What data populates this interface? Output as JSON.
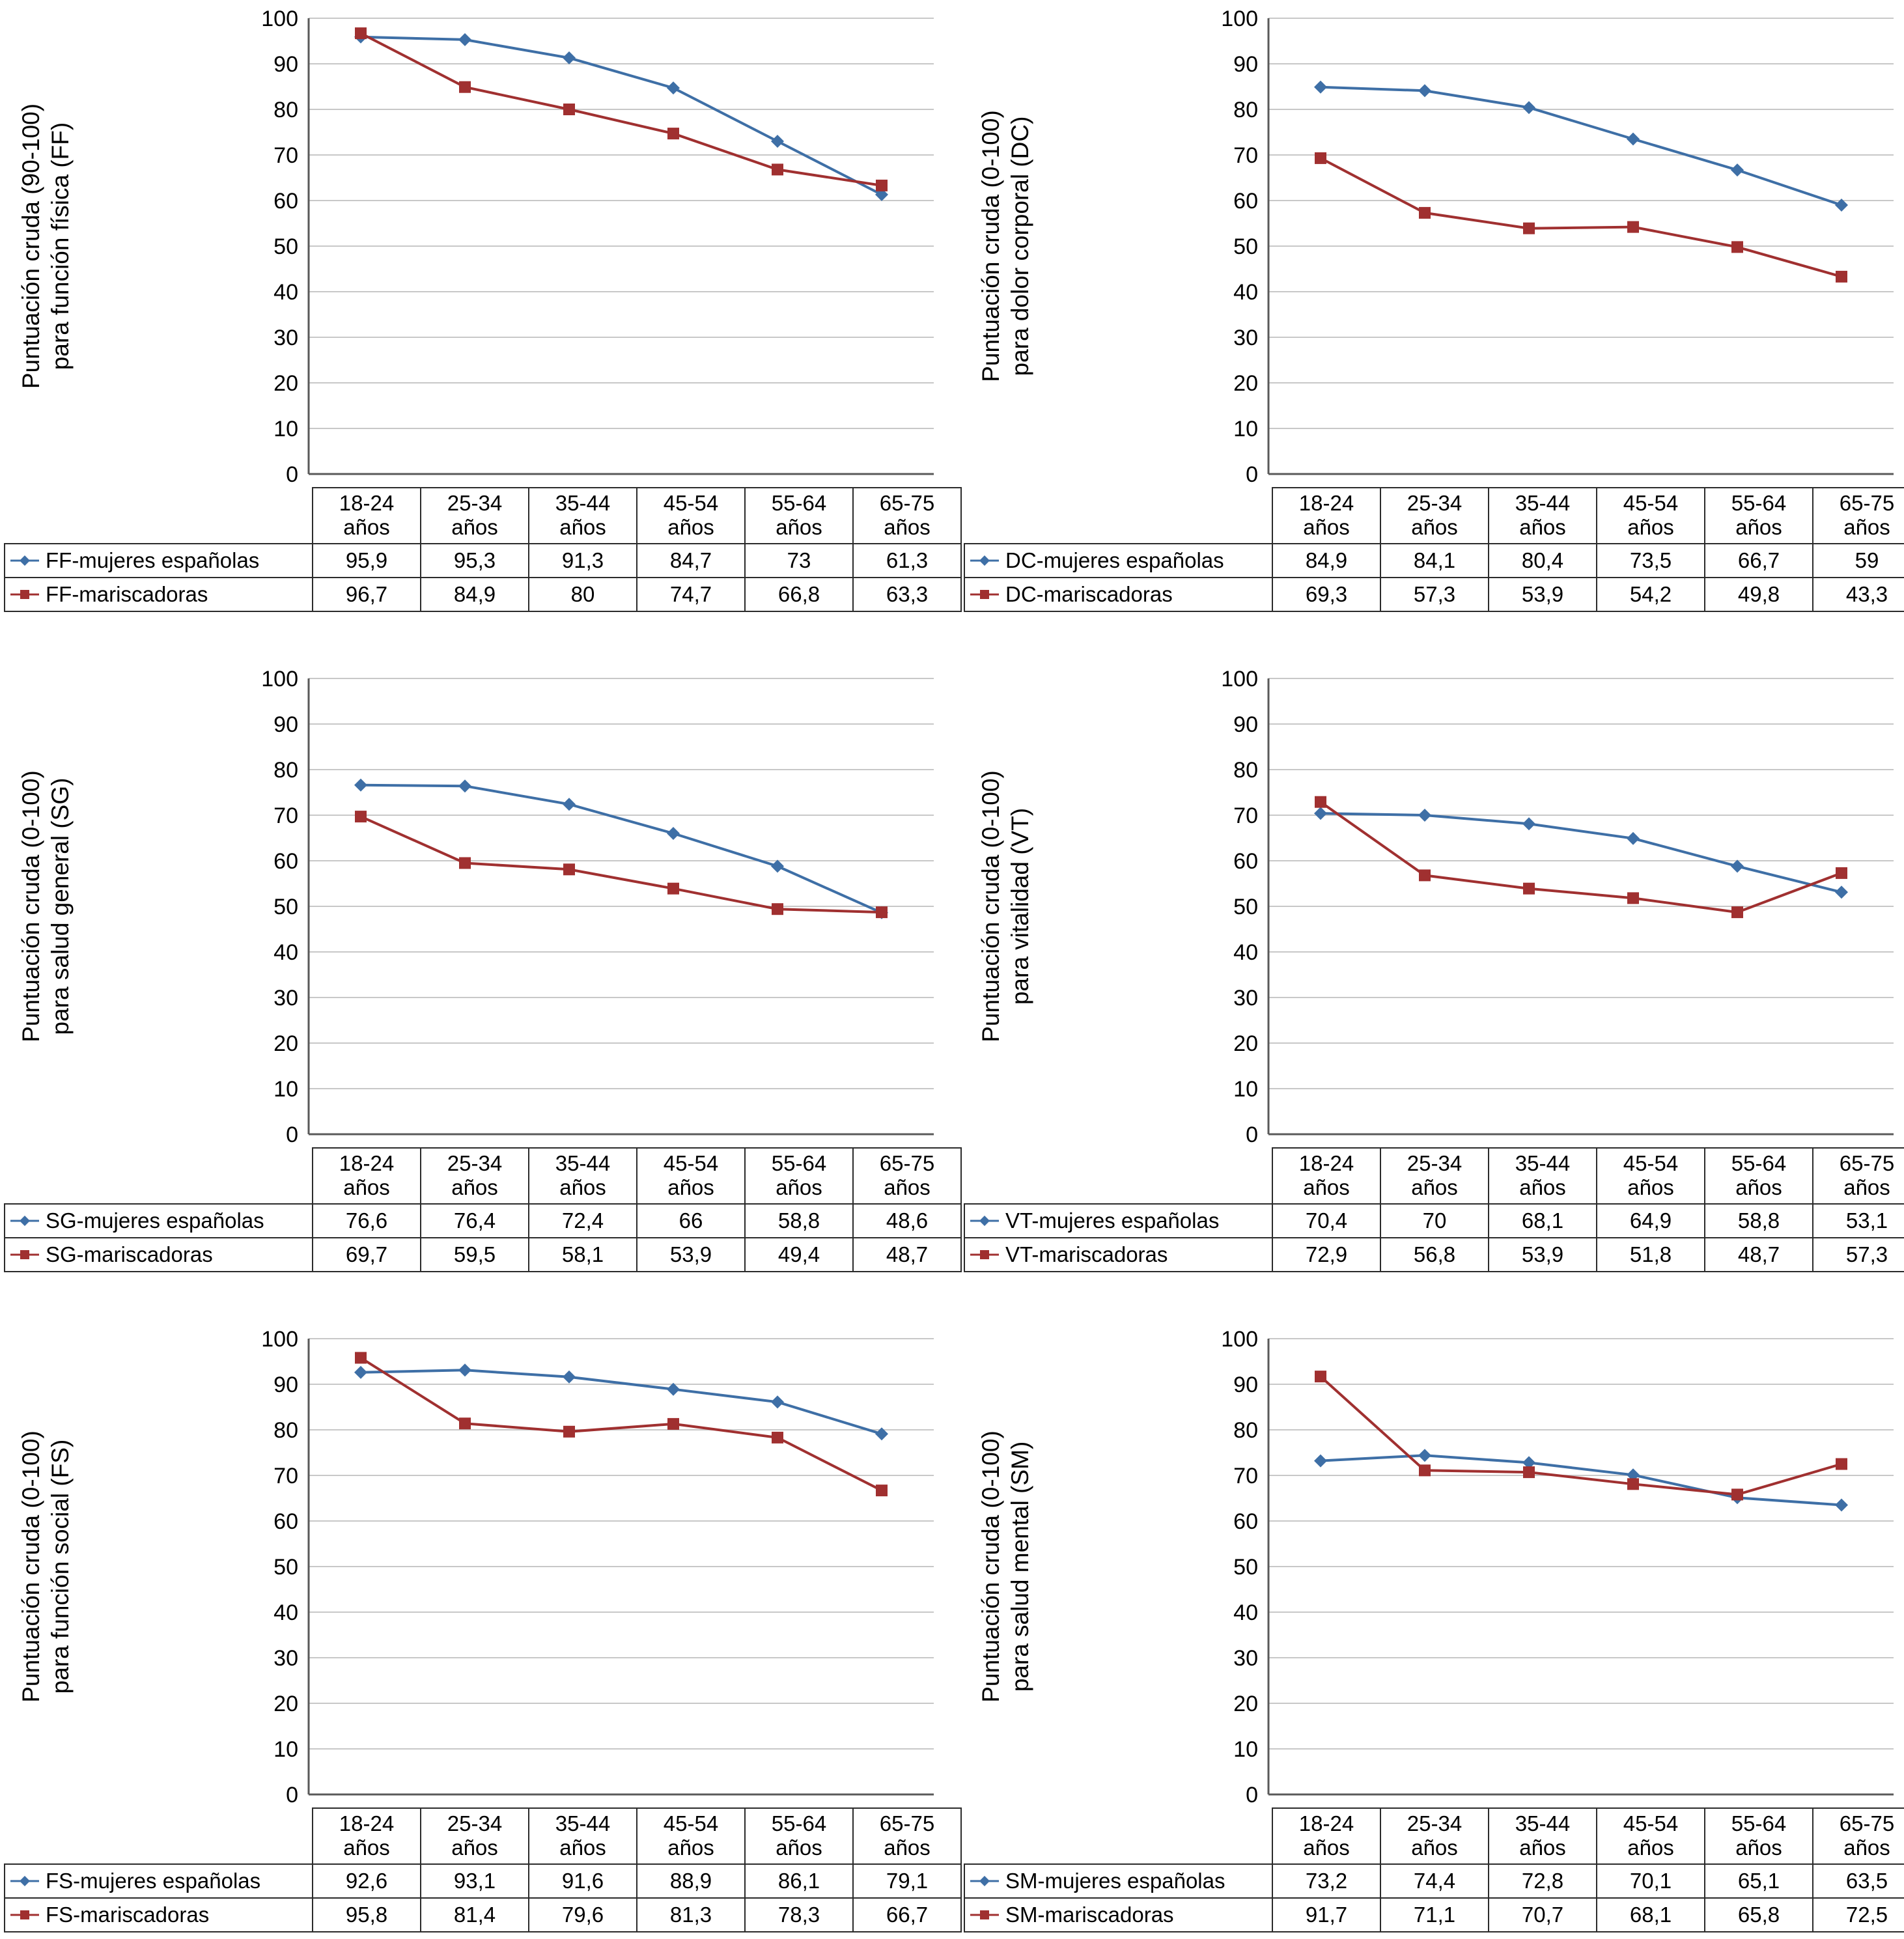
{
  "colors": {
    "series_blue": "#3E6FA6",
    "series_red": "#A03030",
    "gridline": "#C8C8C8",
    "axis": "#595959",
    "table_border": "#2B2B2B",
    "text": "#000000"
  },
  "chart_data": [
    {
      "type": "line",
      "id": "FF",
      "ylabel": [
        "Puntuación cruda (90-100)",
        "para función física (FF)"
      ],
      "ylim": [
        0,
        100
      ],
      "ytick_step": 10,
      "grid": true,
      "legend_position": "table-left",
      "categories": [
        "18-24 años",
        "25-34 años",
        "35-44 años",
        "45-54 años",
        "55-64 años",
        "65-75 años"
      ],
      "series": [
        {
          "name": "FF-mujeres españolas",
          "marker": "diamond",
          "color": "#3E6FA6",
          "values": [
            95.9,
            95.3,
            91.3,
            84.7,
            73,
            61.3
          ]
        },
        {
          "name": "FF-mariscadoras",
          "marker": "square",
          "color": "#A03030",
          "values": [
            96.7,
            84.9,
            80,
            74.7,
            66.8,
            63.3
          ]
        }
      ]
    },
    {
      "type": "line",
      "id": "DC",
      "ylabel": [
        "Puntuación cruda (0-100)",
        "para dolor corporal (DC)"
      ],
      "ylim": [
        0,
        100
      ],
      "ytick_step": 10,
      "grid": true,
      "legend_position": "table-left",
      "categories": [
        "18-24 años",
        "25-34 años",
        "35-44 años",
        "45-54 años",
        "55-64 años",
        "65-75 años"
      ],
      "series": [
        {
          "name": "DC-mujeres españolas",
          "marker": "diamond",
          "color": "#3E6FA6",
          "values": [
            84.9,
            84.1,
            80.4,
            73.5,
            66.7,
            59
          ]
        },
        {
          "name": "DC-mariscadoras",
          "marker": "square",
          "color": "#A03030",
          "values": [
            69.3,
            57.3,
            53.9,
            54.2,
            49.8,
            43.3
          ]
        }
      ]
    },
    {
      "type": "line",
      "id": "SG",
      "ylabel": [
        "Puntuación cruda (0-100)",
        "para salud general (SG)"
      ],
      "ylim": [
        0,
        100
      ],
      "ytick_step": 10,
      "grid": true,
      "legend_position": "table-left",
      "categories": [
        "18-24 años",
        "25-34 años",
        "35-44 años",
        "45-54 años",
        "55-64 años",
        "65-75 años"
      ],
      "series": [
        {
          "name": "SG-mujeres españolas",
          "marker": "diamond",
          "color": "#3E6FA6",
          "values": [
            76.6,
            76.4,
            72.4,
            66,
            58.8,
            48.6
          ]
        },
        {
          "name": "SG-mariscadoras",
          "marker": "square",
          "color": "#A03030",
          "values": [
            69.7,
            59.5,
            58.1,
            53.9,
            49.4,
            48.7
          ]
        }
      ]
    },
    {
      "type": "line",
      "id": "VT",
      "ylabel": [
        "Puntuación cruda (0-100)",
        "para vitalidad (VT)"
      ],
      "ylim": [
        0,
        100
      ],
      "ytick_step": 10,
      "grid": true,
      "legend_position": "table-left",
      "categories": [
        "18-24 años",
        "25-34 años",
        "35-44 años",
        "45-54 años",
        "55-64 años",
        "65-75 años"
      ],
      "series": [
        {
          "name": "VT-mujeres españolas",
          "marker": "diamond",
          "color": "#3E6FA6",
          "values": [
            70.4,
            70,
            68.1,
            64.9,
            58.8,
            53.1
          ]
        },
        {
          "name": "VT-mariscadoras",
          "marker": "square",
          "color": "#A03030",
          "values": [
            72.9,
            56.8,
            53.9,
            51.8,
            48.7,
            57.3
          ]
        }
      ]
    },
    {
      "type": "line",
      "id": "FS",
      "ylabel": [
        "Puntuación cruda (0-100)",
        "para función social (FS)"
      ],
      "ylim": [
        0,
        100
      ],
      "ytick_step": 10,
      "grid": true,
      "legend_position": "table-left",
      "categories": [
        "18-24 años",
        "25-34 años",
        "35-44 años",
        "45-54 años",
        "55-64 años",
        "65-75 años"
      ],
      "series": [
        {
          "name": "FS-mujeres españolas",
          "marker": "diamond",
          "color": "#3E6FA6",
          "values": [
            92.6,
            93.1,
            91.6,
            88.9,
            86.1,
            79.1
          ]
        },
        {
          "name": "FS-mariscadoras",
          "marker": "square",
          "color": "#A03030",
          "values": [
            95.8,
            81.4,
            79.6,
            81.3,
            78.3,
            66.7
          ]
        }
      ]
    },
    {
      "type": "line",
      "id": "SM",
      "ylabel": [
        "Puntuación cruda (0-100)",
        "para salud mental (SM)"
      ],
      "ylim": [
        0,
        100
      ],
      "ytick_step": 10,
      "grid": true,
      "legend_position": "table-left",
      "categories": [
        "18-24 años",
        "25-34 años",
        "35-44 años",
        "45-54 años",
        "55-64 años",
        "65-75 años"
      ],
      "series": [
        {
          "name": "SM-mujeres españolas",
          "marker": "diamond",
          "color": "#3E6FA6",
          "values": [
            73.2,
            74.4,
            72.8,
            70.1,
            65.1,
            63.5
          ]
        },
        {
          "name": "SM-mariscadoras",
          "marker": "square",
          "color": "#A03030",
          "values": [
            91.7,
            71.1,
            70.7,
            68.1,
            65.8,
            72.5
          ]
        }
      ]
    }
  ]
}
